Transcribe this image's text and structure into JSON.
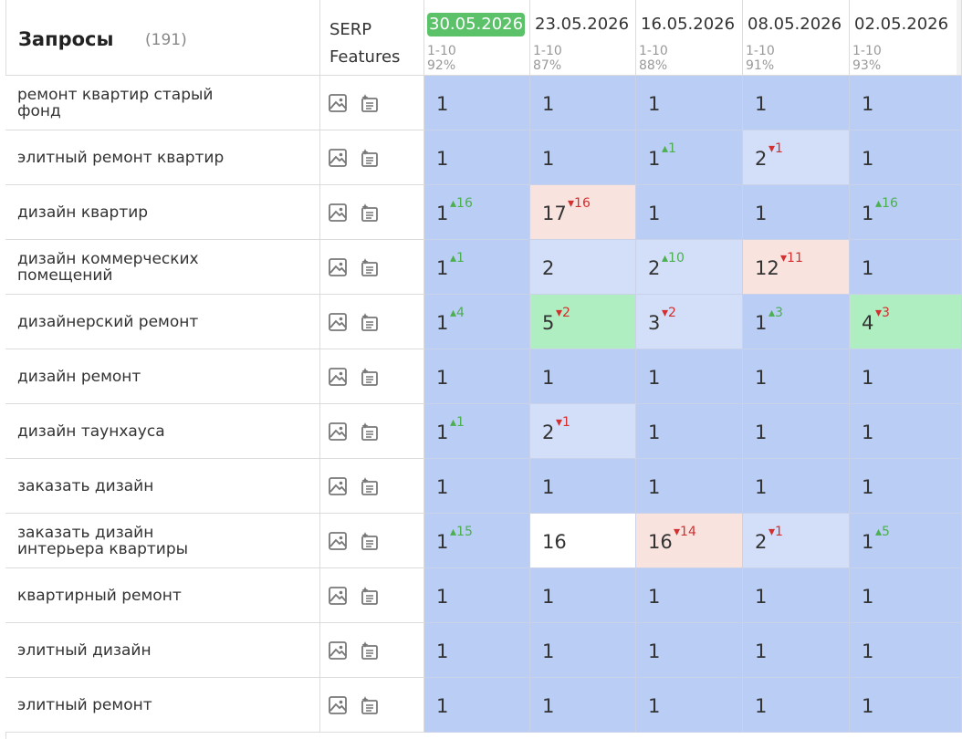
{
  "header": {
    "title": "Запросы",
    "count": "(191)",
    "serp_line1": "SERP",
    "serp_line2": "Features"
  },
  "dates": [
    {
      "date": "30.05.2026",
      "range": "1-10",
      "pct": "92%",
      "active": true
    },
    {
      "date": "23.05.2026",
      "range": "1-10",
      "pct": "87%",
      "active": false
    },
    {
      "date": "16.05.2026",
      "range": "1-10",
      "pct": "88%",
      "active": false
    },
    {
      "date": "08.05.2026",
      "range": "1-10",
      "pct": "91%",
      "active": false
    },
    {
      "date": "02.05.2026",
      "range": "1-10",
      "pct": "93%",
      "active": false
    }
  ],
  "icons": [
    "image-icon",
    "featured-snippet-icon"
  ],
  "colors": {
    "blue": "#b9cdf5",
    "light_blue": "#d3def8",
    "pink": "#f9e3df",
    "green": "#aeeec1",
    "white": "#ffffff",
    "up": "#4caf50",
    "down": "#d32f2f"
  },
  "rows": [
    {
      "query": "ремонт квартир старый фонд",
      "cells": [
        {
          "pos": "1",
          "delta": "",
          "dir": "",
          "bg": "blue"
        },
        {
          "pos": "1",
          "delta": "",
          "dir": "",
          "bg": "blue"
        },
        {
          "pos": "1",
          "delta": "",
          "dir": "",
          "bg": "blue"
        },
        {
          "pos": "1",
          "delta": "",
          "dir": "",
          "bg": "blue"
        },
        {
          "pos": "1",
          "delta": "",
          "dir": "",
          "bg": "blue"
        }
      ]
    },
    {
      "query": "элитный ремонт квартир",
      "cells": [
        {
          "pos": "1",
          "delta": "",
          "dir": "",
          "bg": "blue"
        },
        {
          "pos": "1",
          "delta": "",
          "dir": "",
          "bg": "blue"
        },
        {
          "pos": "1",
          "delta": "1",
          "dir": "up",
          "bg": "blue"
        },
        {
          "pos": "2",
          "delta": "1",
          "dir": "down",
          "bg": "light_blue"
        },
        {
          "pos": "1",
          "delta": "",
          "dir": "",
          "bg": "blue"
        }
      ]
    },
    {
      "query": "дизайн квартир",
      "cells": [
        {
          "pos": "1",
          "delta": "16",
          "dir": "up",
          "bg": "blue"
        },
        {
          "pos": "17",
          "delta": "16",
          "dir": "down",
          "bg": "pink"
        },
        {
          "pos": "1",
          "delta": "",
          "dir": "",
          "bg": "blue"
        },
        {
          "pos": "1",
          "delta": "",
          "dir": "",
          "bg": "blue"
        },
        {
          "pos": "1",
          "delta": "16",
          "dir": "up",
          "bg": "blue"
        }
      ]
    },
    {
      "query": "дизайн коммерческих помещений",
      "cells": [
        {
          "pos": "1",
          "delta": "1",
          "dir": "up",
          "bg": "blue"
        },
        {
          "pos": "2",
          "delta": "",
          "dir": "",
          "bg": "light_blue"
        },
        {
          "pos": "2",
          "delta": "10",
          "dir": "up",
          "bg": "light_blue"
        },
        {
          "pos": "12",
          "delta": "11",
          "dir": "down",
          "bg": "pink"
        },
        {
          "pos": "1",
          "delta": "",
          "dir": "",
          "bg": "blue"
        }
      ]
    },
    {
      "query": "дизайнерский ремонт",
      "cells": [
        {
          "pos": "1",
          "delta": "4",
          "dir": "up",
          "bg": "blue"
        },
        {
          "pos": "5",
          "delta": "2",
          "dir": "down",
          "bg": "green"
        },
        {
          "pos": "3",
          "delta": "2",
          "dir": "down",
          "bg": "light_blue"
        },
        {
          "pos": "1",
          "delta": "3",
          "dir": "up",
          "bg": "blue"
        },
        {
          "pos": "4",
          "delta": "3",
          "dir": "down",
          "bg": "green"
        }
      ]
    },
    {
      "query": "дизайн ремонт",
      "cells": [
        {
          "pos": "1",
          "delta": "",
          "dir": "",
          "bg": "blue"
        },
        {
          "pos": "1",
          "delta": "",
          "dir": "",
          "bg": "blue"
        },
        {
          "pos": "1",
          "delta": "",
          "dir": "",
          "bg": "blue"
        },
        {
          "pos": "1",
          "delta": "",
          "dir": "",
          "bg": "blue"
        },
        {
          "pos": "1",
          "delta": "",
          "dir": "",
          "bg": "blue"
        }
      ]
    },
    {
      "query": "дизайн таунхауса",
      "cells": [
        {
          "pos": "1",
          "delta": "1",
          "dir": "up",
          "bg": "blue"
        },
        {
          "pos": "2",
          "delta": "1",
          "dir": "down",
          "bg": "light_blue"
        },
        {
          "pos": "1",
          "delta": "",
          "dir": "",
          "bg": "blue"
        },
        {
          "pos": "1",
          "delta": "",
          "dir": "",
          "bg": "blue"
        },
        {
          "pos": "1",
          "delta": "",
          "dir": "",
          "bg": "blue"
        }
      ]
    },
    {
      "query": "заказать дизайн",
      "cells": [
        {
          "pos": "1",
          "delta": "",
          "dir": "",
          "bg": "blue"
        },
        {
          "pos": "1",
          "delta": "",
          "dir": "",
          "bg": "blue"
        },
        {
          "pos": "1",
          "delta": "",
          "dir": "",
          "bg": "blue"
        },
        {
          "pos": "1",
          "delta": "",
          "dir": "",
          "bg": "blue"
        },
        {
          "pos": "1",
          "delta": "",
          "dir": "",
          "bg": "blue"
        }
      ]
    },
    {
      "query": "заказать дизайн интерьера квартиры",
      "cells": [
        {
          "pos": "1",
          "delta": "15",
          "dir": "up",
          "bg": "blue"
        },
        {
          "pos": "16",
          "delta": "",
          "dir": "",
          "bg": "white"
        },
        {
          "pos": "16",
          "delta": "14",
          "dir": "down",
          "bg": "pink"
        },
        {
          "pos": "2",
          "delta": "1",
          "dir": "down",
          "bg": "light_blue"
        },
        {
          "pos": "1",
          "delta": "5",
          "dir": "up",
          "bg": "blue"
        }
      ]
    },
    {
      "query": "квартирный ремонт",
      "cells": [
        {
          "pos": "1",
          "delta": "",
          "dir": "",
          "bg": "blue"
        },
        {
          "pos": "1",
          "delta": "",
          "dir": "",
          "bg": "blue"
        },
        {
          "pos": "1",
          "delta": "",
          "dir": "",
          "bg": "blue"
        },
        {
          "pos": "1",
          "delta": "",
          "dir": "",
          "bg": "blue"
        },
        {
          "pos": "1",
          "delta": "",
          "dir": "",
          "bg": "blue"
        }
      ]
    },
    {
      "query": "элитный дизайн",
      "cells": [
        {
          "pos": "1",
          "delta": "",
          "dir": "",
          "bg": "blue"
        },
        {
          "pos": "1",
          "delta": "",
          "dir": "",
          "bg": "blue"
        },
        {
          "pos": "1",
          "delta": "",
          "dir": "",
          "bg": "blue"
        },
        {
          "pos": "1",
          "delta": "",
          "dir": "",
          "bg": "blue"
        },
        {
          "pos": "1",
          "delta": "",
          "dir": "",
          "bg": "blue"
        }
      ]
    },
    {
      "query": "элитный ремонт",
      "cells": [
        {
          "pos": "1",
          "delta": "",
          "dir": "",
          "bg": "blue"
        },
        {
          "pos": "1",
          "delta": "",
          "dir": "",
          "bg": "blue"
        },
        {
          "pos": "1",
          "delta": "",
          "dir": "",
          "bg": "blue"
        },
        {
          "pos": "1",
          "delta": "",
          "dir": "",
          "bg": "blue"
        },
        {
          "pos": "1",
          "delta": "",
          "dir": "",
          "bg": "blue"
        }
      ]
    }
  ]
}
